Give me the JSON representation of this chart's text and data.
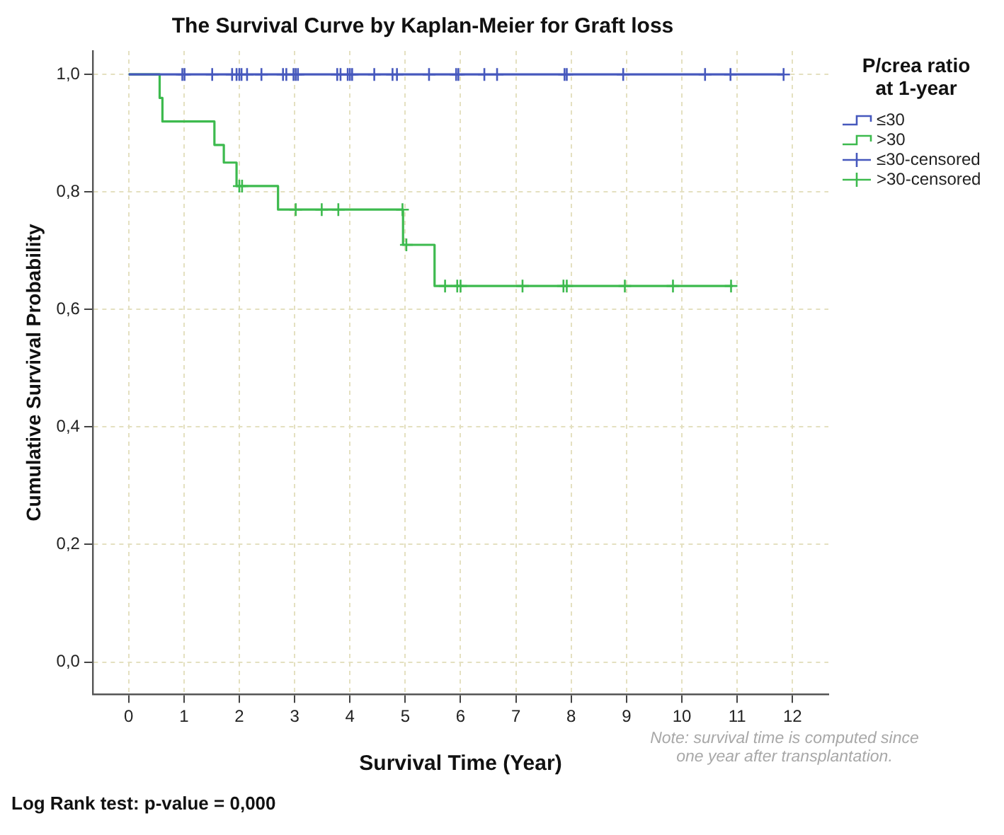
{
  "chart_data": {
    "type": "step",
    "title": "The Survival Curve by Kaplan-Meier for Graft loss",
    "xlabel": "Survival Time (Year)",
    "ylabel": "Cumulative Survival Probability",
    "legend_title": "P/crea ratio at 1-year",
    "series": [
      {
        "name": "≤30",
        "color": "#4658bd",
        "x": [
          0,
          11.84
        ],
        "values": [
          1,
          1
        ]
      },
      {
        "name": ">30",
        "color": "#3dba4e",
        "x": [
          0,
          0.56,
          0.61,
          1.55,
          1.72,
          1.95,
          2.7,
          4.96,
          5.53,
          10.92
        ],
        "values": [
          1,
          0.96,
          0.92,
          0.88,
          0.85,
          0.81,
          0.77,
          0.71,
          0.64,
          0.64
        ]
      },
      {
        "name": "≤30-censored",
        "type": "scatter",
        "marker": "cross",
        "color": "#4658bd",
        "x": [
          0.97,
          1.01,
          1.51,
          1.87,
          1.95,
          2.0,
          2.04,
          2.14,
          2.4,
          2.79,
          2.85,
          2.98,
          3.02,
          3.06,
          3.77,
          3.83,
          3.96,
          4.0,
          4.04,
          4.44,
          4.77,
          4.85,
          5.43,
          5.92,
          5.96,
          6.43,
          6.66,
          7.88,
          7.92,
          8.94,
          10.42,
          10.88,
          11.84
        ],
        "values": [
          1,
          1,
          1,
          1,
          1,
          1,
          1,
          1,
          1,
          1,
          1,
          1,
          1,
          1,
          1,
          1,
          1,
          1,
          1,
          1,
          1,
          1,
          1,
          1,
          1,
          1,
          1,
          1,
          1,
          1,
          1,
          1,
          1
        ]
      },
      {
        "name": ">30-censored",
        "type": "scatter",
        "marker": "cross",
        "color": "#3dba4e",
        "x": [
          2.0,
          2.05,
          3.02,
          3.49,
          3.79,
          4.95,
          5.02,
          5.72,
          5.94,
          6.0,
          7.12,
          7.86,
          7.92,
          8.97,
          9.84,
          10.89
        ],
        "values": [
          0.81,
          0.81,
          0.77,
          0.77,
          0.77,
          0.77,
          0.71,
          0.64,
          0.64,
          0.64,
          0.64,
          0.64,
          0.64,
          0.64,
          0.64,
          0.64
        ]
      }
    ],
    "xlim": [
      -0.65,
      12.65
    ],
    "xticks": [
      0,
      1,
      2,
      3,
      4,
      5,
      6,
      7,
      8,
      9,
      10,
      11,
      12
    ],
    "ylim": [
      -0.055,
      1.04
    ],
    "yticks": [
      {
        "value": 0,
        "label": "0,0"
      },
      {
        "value": 0.2,
        "label": "0,2"
      },
      {
        "value": 0.4,
        "label": "0,4"
      },
      {
        "value": 0.6,
        "label": "0,6"
      },
      {
        "value": 0.8,
        "label": "0,8"
      },
      {
        "value": 1,
        "label": "1,0"
      }
    ],
    "grid": true,
    "legend": "top right",
    "annotations": [
      "Note: survival time is computed since one year after transplantation.",
      "Log Rank test: p-value = 0,000"
    ]
  }
}
